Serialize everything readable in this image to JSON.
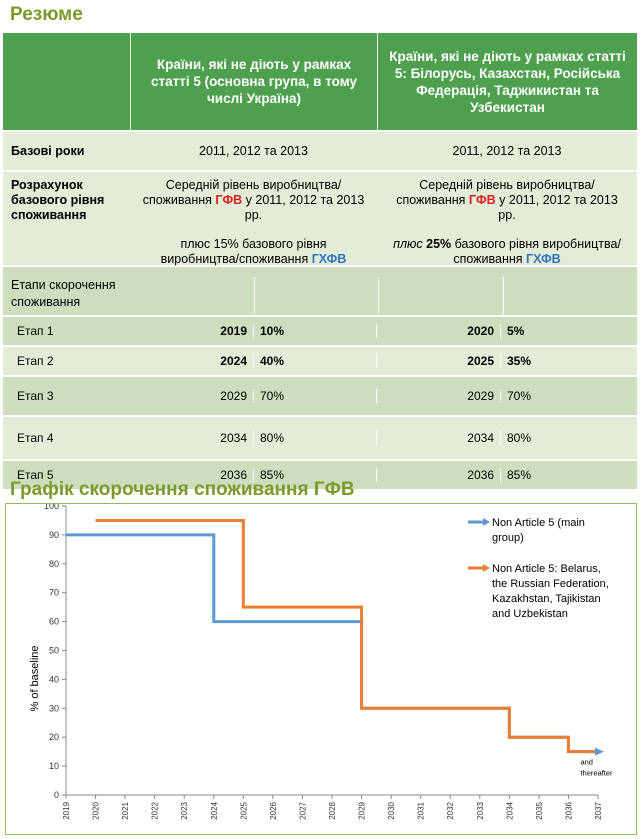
{
  "summary_title": "Резюме",
  "table": {
    "header_col1": "Країни, які не діють у рамках статті 5 (основна група, в тому числі Україна)",
    "header_col2": "Країни, які не діють у рамках статті 5: Білорусь, Казахстан, Російська Федерація, Таджикистан та Узбекистан",
    "base_years_label": "Базові роки",
    "base_years_col1": "2011, 2012 та 2013",
    "base_years_col2": "2011, 2012 та 2013",
    "calc_label": "Розрахунок базового рівня споживання",
    "calc_col1_a": "Середній рівень виробництва/споживання ",
    "calc_col1_hfc": "ГФВ",
    "calc_col1_b": " у 2011, 2012 та 2013 рр.",
    "calc_col1_plus": "плюс 15% базового рівня виробництва/споживання ",
    "calc_col1_hcfc": "ГХФВ",
    "calc_col2_a": "Середній рівень виробництва/споживання ",
    "calc_col2_hfc": "ГФВ",
    "calc_col2_b": " у 2011, 2012 та 2013 рр.",
    "calc_col2_plus_word": "плюс ",
    "calc_col2_plus_pct": "25%",
    "calc_col2_plus_rest": " базового рівня виробництва/споживання ",
    "calc_col2_hcfc": "ГХФВ",
    "stages_label": "Етапи скорочення споживання",
    "stages": [
      {
        "name": "Етап 1",
        "year1": "2019",
        "pct1": "10%",
        "year2": "2020",
        "pct2": "5%"
      },
      {
        "name": "Етап 2",
        "year1": "2024",
        "pct1": "40%",
        "year2": "2025",
        "pct2": "35%"
      },
      {
        "name": "Етап 3",
        "year1": "2029",
        "pct1": "70%",
        "year2": "2029",
        "pct2": "70%"
      },
      {
        "name": "Етап 4",
        "year1": "2034",
        "pct1": "80%",
        "year2": "2034",
        "pct2": "80%"
      },
      {
        "name": "Етап 5",
        "year1": "2036",
        "pct1": "85%",
        "year2": "2036",
        "pct2": "85%"
      }
    ]
  },
  "chart_title": "Графік скорочення споживання ГФВ",
  "chart_data": {
    "type": "line",
    "step": true,
    "ylabel": "% of baseline",
    "xlabel": "",
    "ylim": [
      0,
      100
    ],
    "xlim": [
      2019,
      2037
    ],
    "yticks": [
      0,
      10,
      20,
      30,
      40,
      50,
      60,
      70,
      80,
      90,
      100
    ],
    "xticks": [
      "2019",
      "2020",
      "2021",
      "2022",
      "2023",
      "2024",
      "2025",
      "2026",
      "2027",
      "2028",
      "2029",
      "2030",
      "2031",
      "2032",
      "2033",
      "2034",
      "2035",
      "2036",
      "2037"
    ],
    "grid": false,
    "legend_position": "right",
    "annotation_a": "and",
    "annotation_b": "thereafter",
    "series": [
      {
        "name": "Non Article 5 (main group)",
        "color": "#5b9bd5",
        "x": [
          2019,
          2024,
          2024,
          2029,
          2029,
          2034,
          2034,
          2036,
          2036,
          2037
        ],
        "y": [
          90,
          90,
          60,
          60,
          30,
          30,
          20,
          20,
          15,
          15
        ]
      },
      {
        "name": "Non Article 5: Belarus, the Russian Federation, Kazakhstan, Tajikistan and Uzbekistan",
        "color": "#ed7d31",
        "x": [
          2020,
          2025,
          2025,
          2029,
          2029,
          2034,
          2034,
          2036,
          2036,
          2037
        ],
        "y": [
          95,
          95,
          65,
          65,
          30,
          30,
          20,
          20,
          15,
          15
        ]
      }
    ]
  }
}
